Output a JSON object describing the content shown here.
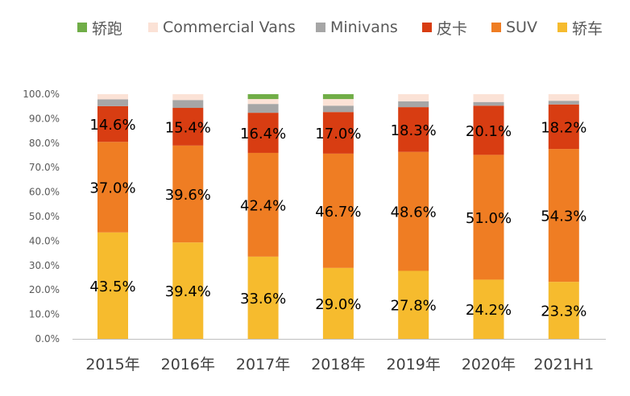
{
  "chart_data": {
    "type": "bar",
    "stacked": true,
    "categories": [
      "2015年",
      "2016年",
      "2017年",
      "2018年",
      "2019年",
      "2020年",
      "2021H1"
    ],
    "ylim": [
      0,
      100
    ],
    "ytick_labels": [
      "0.0%",
      "10.0%",
      "20.0%",
      "30.0%",
      "40.0%",
      "50.0%",
      "60.0%",
      "70.0%",
      "80.0%",
      "90.0%",
      "100.0%"
    ],
    "legend_position": "top",
    "grid": false,
    "series": [
      {
        "name": "轿车",
        "color": "#F6BB2E",
        "values": [
          43.5,
          39.4,
          33.6,
          29.0,
          27.8,
          24.2,
          23.3
        ],
        "labels": [
          "43.5%",
          "39.4%",
          "33.6%",
          "29.0%",
          "27.8%",
          "24.2%",
          "23.3%"
        ]
      },
      {
        "name": "SUV",
        "color": "#EF7D23",
        "values": [
          37.0,
          39.6,
          42.4,
          46.7,
          48.6,
          51.0,
          54.3
        ],
        "labels": [
          "37.0%",
          "39.6%",
          "42.4%",
          "46.7%",
          "48.6%",
          "51.0%",
          "54.3%"
        ]
      },
      {
        "name": "皮卡",
        "color": "#D83D12",
        "values": [
          14.6,
          15.4,
          16.4,
          17.0,
          18.3,
          20.1,
          18.2
        ],
        "labels": [
          "14.6%",
          "15.4%",
          "16.4%",
          "17.0%",
          "18.3%",
          "20.1%",
          "18.2%"
        ]
      },
      {
        "name": "Minivans",
        "color": "#A6A6A6",
        "values": [
          2.8,
          3.2,
          3.6,
          2.6,
          2.4,
          1.5,
          1.5
        ]
      },
      {
        "name": "Commercial Vans",
        "color": "#FBE2D6",
        "values": [
          2.1,
          2.4,
          2.0,
          2.7,
          2.9,
          3.2,
          2.7
        ]
      },
      {
        "name": "轿跑",
        "color": "#70AD47",
        "values": [
          0.0,
          0.0,
          2.0,
          2.0,
          0.0,
          0.0,
          0.0
        ]
      }
    ],
    "legend_order": [
      "轿跑",
      "Commercial Vans",
      "Minivans",
      "皮卡",
      "SUV",
      "轿车"
    ]
  }
}
